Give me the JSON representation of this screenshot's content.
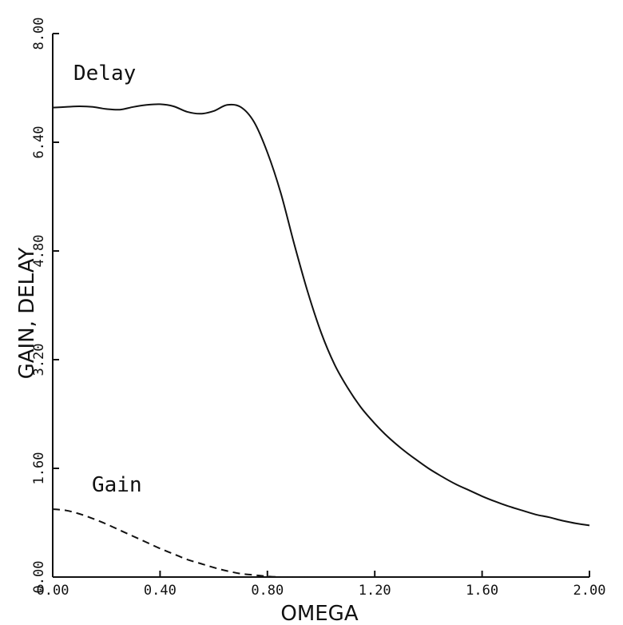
{
  "chart_data": {
    "type": "line",
    "xlabel": "OMEGA",
    "ylabel": "GAIN, DELAY",
    "xlim": [
      0.0,
      2.0
    ],
    "ylim": [
      0.0,
      8.0
    ],
    "x_ticks": [
      0.0,
      0.4,
      0.8,
      1.2,
      1.6,
      2.0
    ],
    "x_tick_labels": [
      "0.00",
      "0.40",
      "0.80",
      "1.20",
      "1.60",
      "2.00"
    ],
    "y_ticks": [
      0.0,
      1.6,
      3.2,
      4.8,
      6.4,
      8.0
    ],
    "y_tick_labels": [
      "0.00",
      "1.60",
      "3.20",
      "4.80",
      "6.40",
      "8.00"
    ],
    "grid": false,
    "annotations": [
      "Delay",
      "Gain"
    ],
    "series": [
      {
        "style": "solid",
        "x": [
          0.0,
          0.05,
          0.1,
          0.15,
          0.2,
          0.25,
          0.3,
          0.35,
          0.4,
          0.45,
          0.5,
          0.55,
          0.6,
          0.65,
          0.7,
          0.75,
          0.8,
          0.85,
          0.9,
          0.95,
          1.0,
          1.05,
          1.1,
          1.15,
          1.2,
          1.25,
          1.3,
          1.35,
          1.4,
          1.45,
          1.5,
          1.55,
          1.6,
          1.65,
          1.7,
          1.75,
          1.8,
          1.85,
          1.9,
          1.95,
          2.0
        ],
        "values": [
          6.91,
          6.92,
          6.93,
          6.92,
          6.89,
          6.88,
          6.92,
          6.95,
          6.96,
          6.93,
          6.85,
          6.82,
          6.86,
          6.95,
          6.92,
          6.7,
          6.25,
          5.65,
          4.9,
          4.2,
          3.6,
          3.13,
          2.78,
          2.49,
          2.26,
          2.06,
          1.89,
          1.74,
          1.6,
          1.48,
          1.37,
          1.28,
          1.19,
          1.11,
          1.04,
          0.98,
          0.92,
          0.88,
          0.83,
          0.79,
          0.76
        ]
      },
      {
        "style": "dashed",
        "x": [
          0.0,
          0.05,
          0.1,
          0.15,
          0.2,
          0.25,
          0.3,
          0.35,
          0.4,
          0.45,
          0.5,
          0.55,
          0.6,
          0.65,
          0.7,
          0.75,
          0.8,
          0.85,
          0.9,
          0.95
        ],
        "values": [
          1.0,
          0.98,
          0.93,
          0.86,
          0.78,
          0.69,
          0.6,
          0.51,
          0.42,
          0.34,
          0.26,
          0.2,
          0.14,
          0.09,
          0.05,
          0.03,
          0.01,
          0.0,
          0.0,
          0.0
        ]
      }
    ]
  }
}
